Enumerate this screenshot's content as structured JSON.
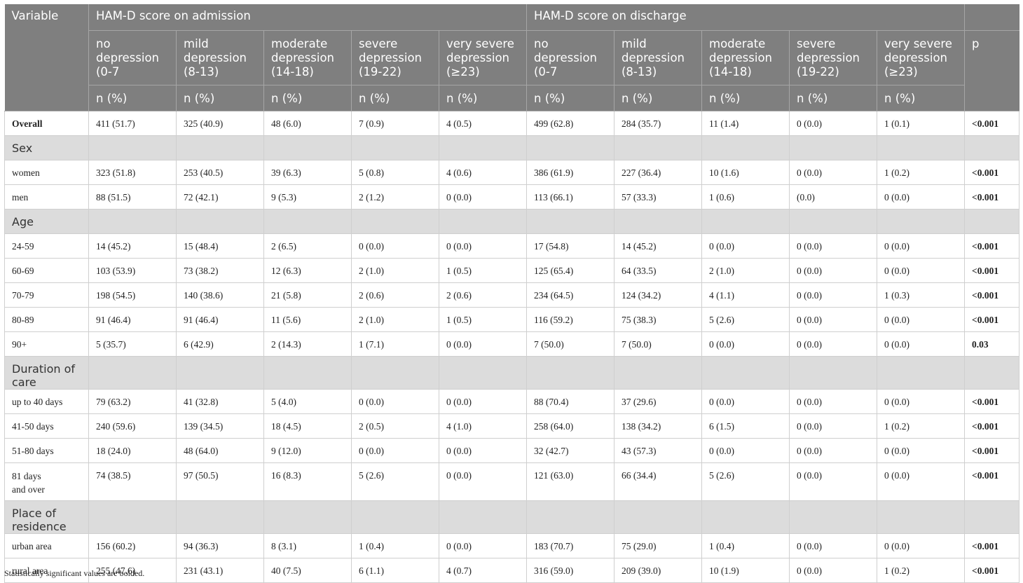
{
  "header": {
    "variable": "Variable",
    "admission": "HAM-D score on admission",
    "discharge": "HAM-D score on discharge",
    "p": "p",
    "categories": [
      "no depression (0-7",
      "mild depression (8-13)",
      "moderate depression (14-18)",
      "severe depression (19-22)",
      "very severe depression (≥23)"
    ],
    "unit": "n (%)"
  },
  "rows": [
    {
      "type": "data",
      "label": "Overall",
      "bold_label": true,
      "vals": [
        "411 (51.7)",
        "325 (40.9)",
        "48 (6.0)",
        "7 (0.9)",
        "4 (0.5)",
        "499 (62.8)",
        "284 (35.7)",
        "11 (1.4)",
        "0 (0.0)",
        "1 (0.1)"
      ],
      "p": "<0.001"
    },
    {
      "type": "section",
      "label": "Sex"
    },
    {
      "type": "data",
      "label": "women",
      "vals": [
        "323 (51.8)",
        "253 (40.5)",
        "39 (6.3)",
        "5 (0.8)",
        "4 (0.6)",
        "386 (61.9)",
        "227 (36.4)",
        "10 (1.6)",
        "0 (0.0)",
        "1 (0.2)"
      ],
      "p": "<0.001"
    },
    {
      "type": "data",
      "label": "men",
      "vals": [
        "88 (51.5)",
        "72 (42.1)",
        "9 (5.3)",
        "2 (1.2)",
        "0 (0.0)",
        "113 (66.1)",
        "57 (33.3)",
        "1 (0.6)",
        "(0.0)",
        "0 (0.0)"
      ],
      "p": "<0.001"
    },
    {
      "type": "section",
      "label": "Age"
    },
    {
      "type": "data",
      "label": "24-59",
      "vals": [
        "14 (45.2)",
        "15 (48.4)",
        "2 (6.5)",
        "0 (0.0)",
        "0 (0.0)",
        "17 (54.8)",
        "14 (45.2)",
        "0 (0.0)",
        "0 (0.0)",
        "0 (0.0)"
      ],
      "p": "<0.001"
    },
    {
      "type": "data",
      "label": "60-69",
      "vals": [
        "103 (53.9)",
        "73 (38.2)",
        "12 (6.3)",
        "2 (1.0)",
        "1 (0.5)",
        "125 (65.4)",
        "64 (33.5)",
        "2 (1.0)",
        "0 (0.0)",
        "0 (0.0)"
      ],
      "p": "<0.001"
    },
    {
      "type": "data",
      "label": "70-79",
      "vals": [
        "198 (54.5)",
        "140 (38.6)",
        "21 (5.8)",
        "2 (0.6)",
        "2 (0.6)",
        "234 (64.5)",
        "124 (34.2)",
        "4 (1.1)",
        "0 (0.0)",
        "1 (0.3)"
      ],
      "p": "<0.001"
    },
    {
      "type": "data",
      "label": "80-89",
      "vals": [
        "91 (46.4)",
        "91 (46.4)",
        "11 (5.6)",
        "2 (1.0)",
        "1 (0.5)",
        "116 (59.2)",
        "75 (38.3)",
        "5 (2.6)",
        "0 (0.0)",
        "0 (0.0)"
      ],
      "p": "<0.001"
    },
    {
      "type": "data",
      "label": "90+",
      "vals": [
        "5 (35.7)",
        "6 (42.9)",
        "2 (14.3)",
        "1 (7.1)",
        "0 (0.0)",
        "7 (50.0)",
        "7 (50.0)",
        "0 (0.0)",
        "0 (0.0)",
        "0 (0.0)"
      ],
      "p": "0.03"
    },
    {
      "type": "section",
      "label": "Duration of care"
    },
    {
      "type": "data",
      "label": "up to 40 days",
      "vals": [
        "79 (63.2)",
        "41 (32.8)",
        "5 (4.0)",
        "0 (0.0)",
        "0 (0.0)",
        "88 (70.4)",
        "37 (29.6)",
        "0 (0.0)",
        "0 (0.0)",
        "0 (0.0)"
      ],
      "p": "<0.001"
    },
    {
      "type": "data",
      "label": "41-50 days",
      "vals": [
        "240 (59.6)",
        "139 (34.5)",
        "18 (4.5)",
        "2 (0.5)",
        "4 (1.0)",
        "258 (64.0)",
        "138 (34.2)",
        "6 (1.5)",
        "0 (0.0)",
        "1 (0.2)"
      ],
      "p": "<0.001"
    },
    {
      "type": "data",
      "label": "51-80 days",
      "vals": [
        "18 (24.0)",
        "48 (64.0)",
        "9 (12.0)",
        "0 (0.0)",
        "0 (0.0)",
        "32 (42.7)",
        "43 (57.3)",
        "0 (0.0)",
        "0 (0.0)",
        "0 (0.0)"
      ],
      "p": "<0.001"
    },
    {
      "type": "data",
      "label": "81 days and over",
      "label_lines": [
        "81 days",
        "and over"
      ],
      "vals": [
        "74 (38.5)",
        "97 (50.5)",
        "16 (8.3)",
        "5 (2.6)",
        "0 (0.0)",
        "121 (63.0)",
        "66 (34.4)",
        "5 (2.6)",
        "0 (0.0)",
        "0 (0.0)"
      ],
      "p": "<0.001"
    },
    {
      "type": "section",
      "label": "Place of residence"
    },
    {
      "type": "data",
      "label": "urban area",
      "vals": [
        "156 (60.2)",
        "94 (36.3)",
        "8 (3.1)",
        "1 (0.4)",
        "0 (0.0)",
        "183 (70.7)",
        "75 (29.0)",
        "1 (0.4)",
        "0 (0.0)",
        "0 (0.0)"
      ],
      "p": "<0.001"
    },
    {
      "type": "data",
      "label": "rural area",
      "vals": [
        "255 (47.6)",
        "231 (43.1)",
        "40 (7.5)",
        "6 (1.1)",
        "4 (0.7)",
        "316 (59.0)",
        "209 (39.0)",
        "10 (1.9)",
        "0 (0.0)",
        "1 (0.2)"
      ],
      "p": "<0.001"
    }
  ],
  "footnote": "Statistically significant values are bolded.",
  "colors": {
    "header_bg": "#7f7f7f",
    "section_bg": "#dcdcdc"
  }
}
